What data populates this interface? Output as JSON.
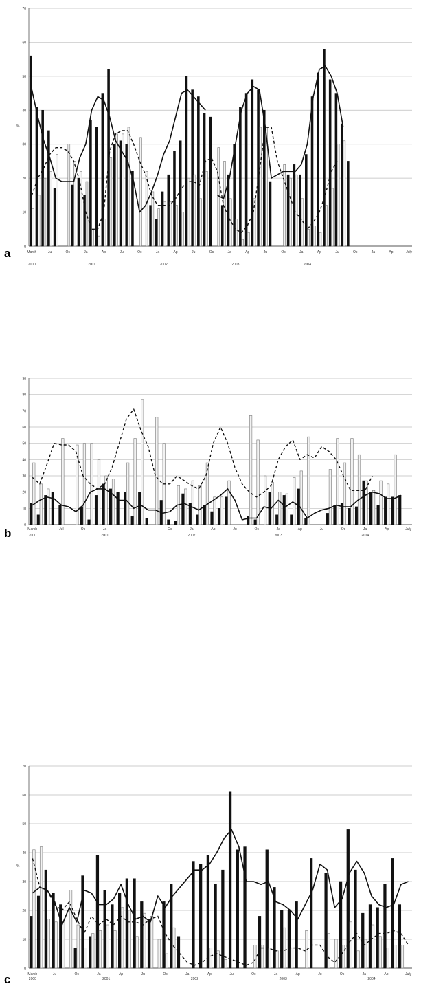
{
  "chart_data": [
    {
      "type": "bar",
      "panel_label": "a",
      "ylabel": "%",
      "ylim": [
        0,
        70
      ],
      "yticks": [
        0,
        10,
        20,
        30,
        40,
        50,
        60,
        70
      ],
      "month_labels": [
        "March",
        "",
        "",
        "Ju",
        "",
        "",
        "Oc",
        "",
        "",
        "Ja",
        "",
        "",
        "Ap",
        "",
        "",
        "Ju",
        "",
        "",
        "Oc",
        "",
        "",
        "Ja",
        "",
        "",
        "Ap",
        "",
        "",
        "Ju",
        "",
        "",
        "Oc",
        "",
        "",
        "Ja",
        "",
        "",
        "Ap",
        "",
        "",
        "Ju",
        "",
        "",
        "Oc",
        "",
        "",
        "Ja",
        "",
        "",
        "Ap",
        "",
        "",
        "Ju",
        "",
        "",
        "Oc",
        "",
        "",
        "Ja",
        "",
        "",
        "Ap",
        "",
        "",
        "July"
      ],
      "year_labels": [
        {
          "label": "2000",
          "month": 0
        },
        {
          "label": "2001",
          "month": 10
        },
        {
          "label": "2002",
          "month": 22
        },
        {
          "label": "2003",
          "month": 34
        },
        {
          "label": "2004",
          "month": 46
        }
      ],
      "series": [
        {
          "style": "bar-black",
          "values": [
            56,
            41,
            40,
            34,
            17,
            null,
            null,
            18,
            20,
            15,
            37,
            35,
            45,
            52,
            30,
            31,
            30,
            22,
            null,
            null,
            12,
            8,
            16,
            21,
            28,
            31,
            50,
            46,
            44,
            39,
            38,
            null,
            12,
            21,
            30,
            41,
            45,
            49,
            46,
            40,
            19,
            null,
            null,
            21,
            24,
            21,
            27,
            44,
            51,
            58,
            49,
            45,
            36,
            25
          ]
        },
        {
          "style": "bar-white",
          "values": [
            11,
            15,
            20,
            22,
            27,
            null,
            30,
            25,
            22,
            19,
            5,
            3,
            8,
            26,
            33,
            33,
            35,
            null,
            32,
            22,
            16,
            11,
            13,
            13,
            12,
            10,
            20,
            21,
            14,
            22,
            null,
            29,
            25,
            14,
            8,
            2,
            4,
            14,
            35,
            35,
            null,
            null,
            24,
            20,
            21,
            14,
            5,
            6,
            4,
            12,
            17,
            30,
            31,
            null
          ]
        },
        {
          "style": "line-solid",
          "values": [
            46,
            38,
            31,
            26,
            20,
            19,
            19,
            19,
            26,
            30,
            40,
            44,
            43,
            38,
            31,
            28,
            25,
            19,
            10,
            12,
            16,
            21,
            27,
            31,
            38,
            45,
            46,
            44,
            42,
            40,
            null,
            15,
            14,
            20,
            30,
            40,
            45,
            47,
            46,
            35,
            20,
            21,
            22,
            22,
            22,
            24,
            30,
            44,
            52,
            53,
            50,
            45,
            35
          ]
        },
        {
          "style": "line-dashed",
          "values": [
            15,
            20,
            23,
            27,
            29,
            29,
            28,
            25,
            19,
            10,
            5,
            5,
            10,
            28,
            33,
            34,
            34,
            30,
            25,
            21,
            15,
            12,
            12,
            12,
            14,
            17,
            19,
            19,
            18,
            25,
            26,
            22,
            12,
            8,
            5,
            4,
            6,
            10,
            22,
            35,
            35,
            25,
            20,
            15,
            10,
            8,
            5,
            7,
            10,
            15,
            22,
            25
          ]
        }
      ]
    },
    {
      "type": "bar",
      "panel_label": "b",
      "ylabel": "",
      "ylim": [
        0,
        90
      ],
      "yticks": [
        0,
        10,
        20,
        30,
        40,
        50,
        60,
        70,
        80,
        90
      ],
      "month_labels": [
        "March",
        "",
        "",
        "",
        "Jul",
        "",
        "",
        "Oc",
        "",
        "",
        "Ja",
        "",
        "",
        "",
        "",
        "",
        "",
        "",
        "",
        "Oc",
        "",
        "",
        "Ja",
        "",
        "",
        "Ap",
        "",
        "",
        "Ju",
        "",
        "",
        "Oc",
        "",
        "",
        "Ja",
        "",
        "",
        "Ap",
        "",
        "",
        "Ju",
        "",
        "",
        "Oc",
        "",
        "",
        "Ja",
        "",
        "",
        "Ap",
        "",
        "",
        "July"
      ],
      "year_labels": [
        {
          "label": "2000",
          "month": 0
        },
        {
          "label": "2001",
          "month": 10
        },
        {
          "label": "2002",
          "month": 22
        },
        {
          "label": "2003",
          "month": 34
        },
        {
          "label": "2004",
          "month": 46
        }
      ],
      "series": [
        {
          "style": "bar-black",
          "values": [
            13,
            6,
            18,
            20,
            12,
            null,
            null,
            11,
            3,
            18,
            25,
            22,
            20,
            20,
            5,
            20,
            4,
            null,
            15,
            3,
            2,
            19,
            13,
            6,
            12,
            8,
            10,
            17,
            null,
            null,
            5,
            3,
            null,
            20,
            6,
            18,
            6,
            22,
            4,
            null,
            null,
            7,
            12,
            13,
            10,
            11,
            27,
            20,
            12,
            17,
            17,
            18
          ]
        },
        {
          "style": "bar-white",
          "values": [
            38,
            25,
            22,
            null,
            53,
            null,
            49,
            50,
            50,
            40,
            30,
            28,
            null,
            38,
            53,
            77,
            null,
            66,
            50,
            null,
            24,
            22,
            27,
            24,
            38,
            17,
            17,
            27,
            null,
            null,
            67,
            52,
            30,
            26,
            20,
            19,
            29,
            33,
            54,
            null,
            null,
            34,
            53,
            38,
            53,
            43,
            27,
            21,
            27,
            25,
            43,
            null
          ]
        },
        {
          "style": "line-solid",
          "values": [
            12,
            15,
            17,
            16,
            12,
            11,
            8,
            12,
            20,
            22,
            22,
            19,
            15,
            15,
            10,
            12,
            9,
            9,
            7,
            8,
            12,
            13,
            11,
            9,
            12,
            15,
            18,
            22,
            15,
            3,
            4,
            4,
            11,
            10,
            15,
            11,
            14,
            11,
            4,
            7,
            9,
            10,
            12,
            11,
            11,
            15,
            18,
            20,
            19,
            16,
            16,
            18
          ]
        },
        {
          "style": "line-dashed",
          "values": [
            29,
            25,
            37,
            50,
            49,
            49,
            45,
            30,
            25,
            22,
            25,
            35,
            50,
            65,
            71,
            58,
            48,
            30,
            25,
            25,
            30,
            27,
            24,
            22,
            30,
            50,
            60,
            50,
            35,
            25,
            20,
            17,
            20,
            24,
            40,
            48,
            52,
            40,
            43,
            41,
            48,
            45,
            40,
            30,
            21,
            21,
            21,
            30
          ]
        }
      ]
    },
    {
      "type": "bar",
      "panel_label": "c",
      "ylabel": "%",
      "ylim": [
        0,
        70
      ],
      "yticks": [
        0,
        10,
        20,
        30,
        40,
        50,
        60,
        70
      ],
      "month_labels": [
        "March",
        "",
        "",
        "Ju",
        "",
        "",
        "Oc",
        "",
        "",
        "Ja",
        "",
        "",
        "Ap",
        "",
        "",
        "Ju",
        "",
        "",
        "Oc",
        "",
        "",
        "Ja",
        "",
        "",
        "Ap",
        "",
        "",
        "Ju",
        "",
        "",
        "Oc",
        "",
        "",
        "Ja",
        "",
        "",
        "Ap",
        "",
        "",
        "Ju",
        "",
        "",
        "Oc",
        "",
        "",
        "Ja",
        "",
        "",
        "Ap",
        "",
        "",
        "July"
      ],
      "year_labels": [
        {
          "label": "2000",
          "month": 0
        },
        {
          "label": "2001",
          "month": 10
        },
        {
          "label": "2002",
          "month": 22
        },
        {
          "label": "2003",
          "month": 34
        },
        {
          "label": "2004",
          "month": 46
        }
      ],
      "series": [
        {
          "style": "bar-black",
          "values": [
            18,
            25,
            34,
            26,
            22,
            null,
            7,
            32,
            11,
            39,
            27,
            22,
            26,
            31,
            31,
            23,
            17,
            null,
            23,
            29,
            11,
            null,
            37,
            36,
            39,
            29,
            34,
            61,
            41,
            42,
            null,
            18,
            41,
            28,
            20,
            20,
            23,
            null,
            38,
            null,
            33,
            null,
            30,
            48,
            34,
            19,
            22,
            21,
            29,
            38,
            22
          ]
        },
        {
          "style": "bar-white",
          "values": [
            41,
            42,
            17,
            16,
            16,
            27,
            15,
            7,
            12,
            13,
            15,
            13,
            21,
            20,
            11,
            19,
            18,
            10,
            5,
            14,
            null,
            null,
            null,
            null,
            7,
            6,
            3,
            null,
            null,
            null,
            8,
            8,
            7,
            6,
            14,
            7,
            null,
            13,
            null,
            null,
            12,
            10,
            8,
            16,
            6,
            10,
            15,
            11,
            7,
            8,
            8
          ]
        },
        {
          "style": "line-solid",
          "values": [
            26,
            28,
            27,
            23,
            15,
            21,
            16,
            27,
            26,
            22,
            22,
            24,
            29,
            22,
            17,
            18,
            16,
            25,
            21,
            25,
            28,
            31,
            34,
            34,
            36,
            40,
            45,
            48,
            42,
            30,
            30,
            29,
            30,
            23,
            22,
            20,
            17,
            22,
            27,
            36,
            34,
            21,
            24,
            33,
            37,
            33,
            25,
            22,
            21,
            22,
            29,
            30
          ]
        },
        {
          "style": "line-dashed",
          "values": [
            38,
            28,
            27,
            22,
            20,
            23,
            17,
            12,
            18,
            15,
            17,
            15,
            18,
            16,
            16,
            15,
            17,
            18,
            12,
            8,
            5,
            2,
            1,
            2,
            4,
            5,
            4,
            3,
            2,
            1,
            2,
            7,
            7,
            6,
            6,
            7,
            7,
            6,
            8,
            8,
            4,
            2,
            5,
            9,
            12,
            8,
            10,
            12,
            12,
            13,
            12,
            8,
            6
          ]
        }
      ]
    }
  ]
}
